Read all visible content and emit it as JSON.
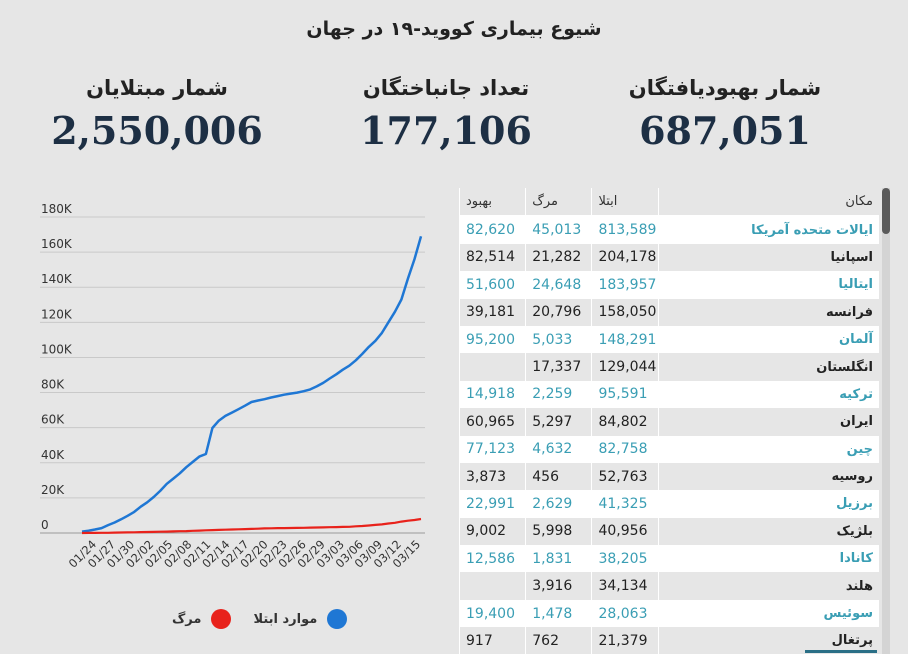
{
  "title": "شیوع بیماری کووید-۱۹ در جهان",
  "stats": {
    "recovered": {
      "label": "شمار بهبودیافتگان",
      "value": "687,051"
    },
    "deaths": {
      "label": "تعداد جانباختگان",
      "value": "177,106"
    },
    "cases": {
      "label": "شمار مبتلایان",
      "value": "2,550,006"
    }
  },
  "colors": {
    "cases": "#1f77d4",
    "deaths": "#e8221b",
    "accent": "#3a9eb4"
  },
  "chart_data": {
    "type": "line",
    "title": "",
    "xlabel": "",
    "ylabel": "",
    "ylim": [
      0,
      180000
    ],
    "yticks": [
      "0",
      "20K",
      "40K",
      "60K",
      "80K",
      "100K",
      "120K",
      "140K",
      "160K",
      "180K"
    ],
    "ytick_values": [
      0,
      20000,
      40000,
      60000,
      80000,
      100000,
      120000,
      140000,
      160000,
      180000
    ],
    "grid": true,
    "legend_position": "bottom",
    "xtick_labels": [
      "01/24",
      "01/27",
      "01/30",
      "02/02",
      "02/05",
      "02/08",
      "02/11",
      "02/14",
      "02/17",
      "02/20",
      "02/23",
      "02/26",
      "02/29",
      "03/03",
      "03/06",
      "03/09",
      "03/12",
      "03/15"
    ],
    "series": [
      {
        "name": "موارد ابتلا",
        "color": "#1f77d4",
        "values": [
          800,
          1300,
          2000,
          2800,
          4500,
          6000,
          7800,
          9800,
          12000,
          15000,
          17500,
          20500,
          24000,
          28000,
          31000,
          34000,
          37500,
          40500,
          43500,
          45000,
          59800,
          64000,
          66700,
          68600,
          70500,
          72500,
          74600,
          75500,
          76200,
          77200,
          78000,
          78800,
          79400,
          80000,
          80800,
          81800,
          83500,
          85500,
          88000,
          90400,
          93000,
          95300,
          98400,
          102000,
          106000,
          109500,
          114000,
          120000,
          126000,
          133000,
          145000,
          156000,
          169000
        ]
      },
      {
        "name": "مرگ",
        "color": "#e8221b",
        "values": [
          25,
          40,
          60,
          90,
          140,
          200,
          260,
          320,
          400,
          490,
          560,
          640,
          720,
          810,
          910,
          1020,
          1110,
          1260,
          1380,
          1520,
          1660,
          1770,
          1870,
          2010,
          2120,
          2240,
          2360,
          2460,
          2620,
          2700,
          2770,
          2810,
          2860,
          2920,
          2980,
          3050,
          3120,
          3200,
          3280,
          3350,
          3460,
          3560,
          3810,
          3990,
          4260,
          4610,
          4910,
          5400,
          5830,
          6470,
          7020,
          7420,
          8000
        ]
      }
    ]
  },
  "legend": [
    {
      "label": "موارد ابتلا",
      "color": "#1f77d4"
    },
    {
      "label": "مرگ",
      "color": "#e8221b"
    }
  ],
  "table": {
    "headers": {
      "location": "مکان",
      "cases": "ابتلا",
      "deaths": "مرگ",
      "recovered": "بهبود"
    },
    "rows": [
      {
        "location": "ایالات متحده آمریکا",
        "cases": "813,589",
        "deaths": "45,013",
        "recovered": "82,620"
      },
      {
        "location": "اسپانیا",
        "cases": "204,178",
        "deaths": "21,282",
        "recovered": "82,514"
      },
      {
        "location": "ایتالیا",
        "cases": "183,957",
        "deaths": "24,648",
        "recovered": "51,600"
      },
      {
        "location": "فرانسه",
        "cases": "158,050",
        "deaths": "20,796",
        "recovered": "39,181"
      },
      {
        "location": "آلمان",
        "cases": "148,291",
        "deaths": "5,033",
        "recovered": "95,200"
      },
      {
        "location": "انگلستان",
        "cases": "129,044",
        "deaths": "17,337",
        "recovered": ""
      },
      {
        "location": "ترکیه",
        "cases": "95,591",
        "deaths": "2,259",
        "recovered": "14,918"
      },
      {
        "location": "ایران",
        "cases": "84,802",
        "deaths": "5,297",
        "recovered": "60,965"
      },
      {
        "location": "چین",
        "cases": "82,758",
        "deaths": "4,632",
        "recovered": "77,123"
      },
      {
        "location": "روسیه",
        "cases": "52,763",
        "deaths": "456",
        "recovered": "3,873"
      },
      {
        "location": "برزیل",
        "cases": "41,325",
        "deaths": "2,629",
        "recovered": "22,991"
      },
      {
        "location": "بلژیک",
        "cases": "40,956",
        "deaths": "5,998",
        "recovered": "9,002"
      },
      {
        "location": "کانادا",
        "cases": "38,205",
        "deaths": "1,831",
        "recovered": "12,586"
      },
      {
        "location": "هلند",
        "cases": "34,134",
        "deaths": "3,916",
        "recovered": ""
      },
      {
        "location": "سوئیس",
        "cases": "28,063",
        "deaths": "1,478",
        "recovered": "19,400"
      },
      {
        "location": "پرتغال",
        "cases": "21,379",
        "deaths": "762",
        "recovered": "917"
      }
    ]
  }
}
